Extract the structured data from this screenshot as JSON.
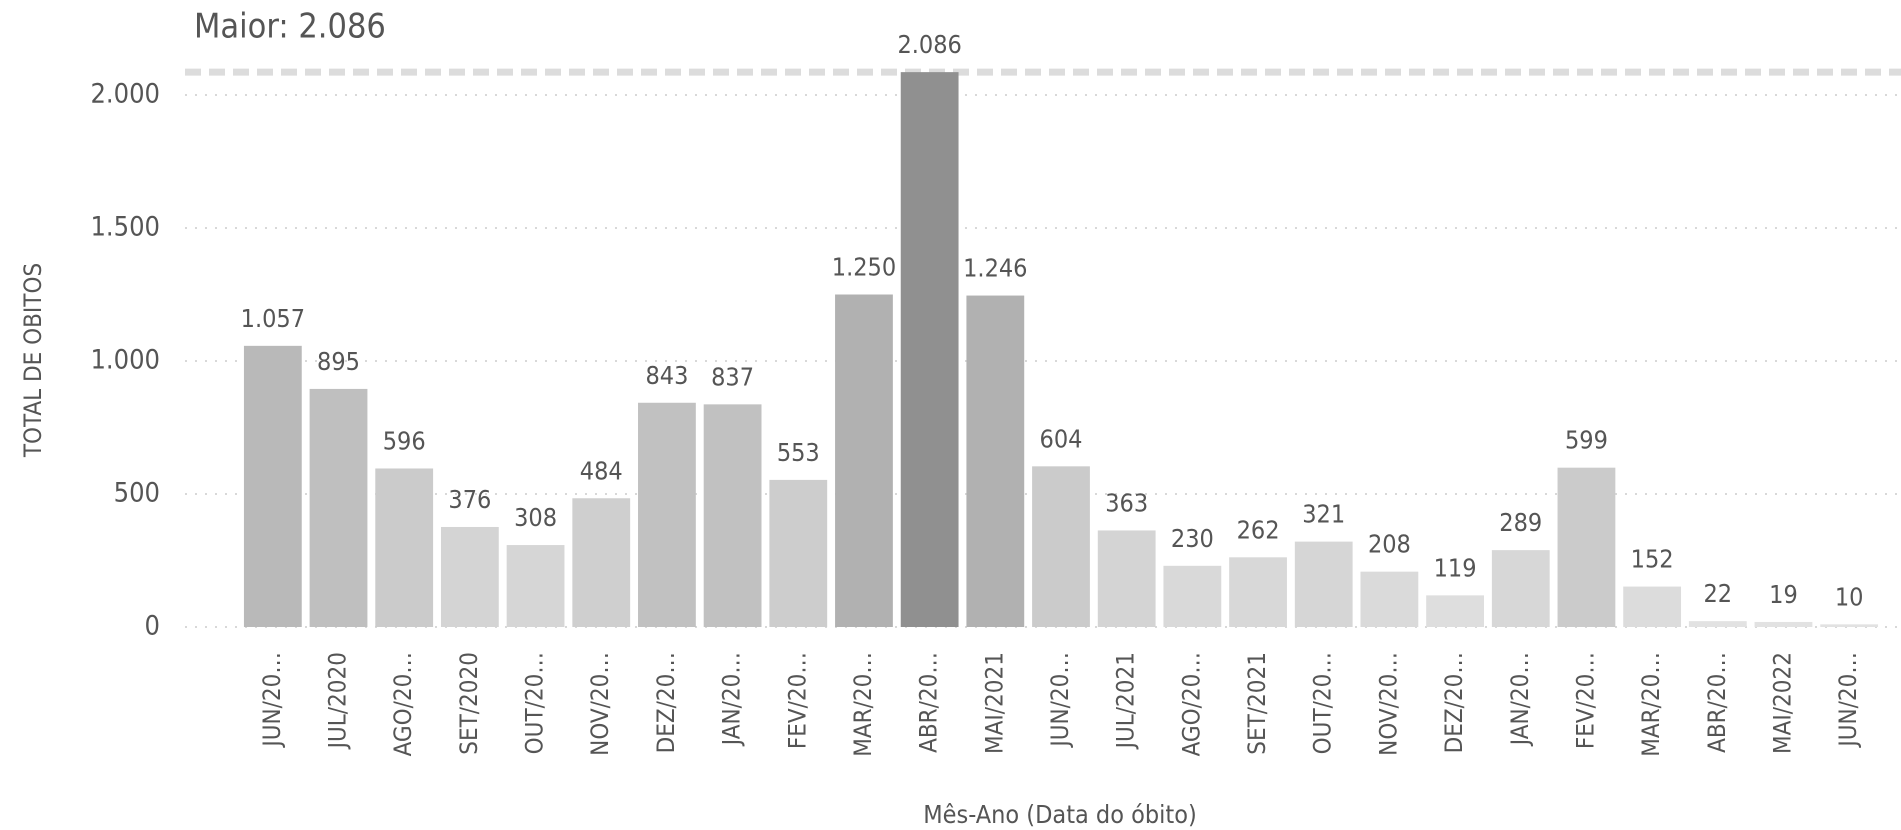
{
  "chart_data": {
    "type": "bar",
    "categories": [
      "JUN/20…",
      "JUL/2020",
      "AGO/20…",
      "SET/2020",
      "OUT/20…",
      "NOV/20…",
      "DEZ/20…",
      "JAN/20…",
      "FEV/20…",
      "MAR/20…",
      "ABR/20…",
      "MAI/2021",
      "JUN/20…",
      "JUL/2021",
      "AGO/20…",
      "SET/2021",
      "OUT/20…",
      "NOV/20…",
      "DEZ/20…",
      "JAN/20…",
      "FEV/20…",
      "MAR/20…",
      "ABR/20…",
      "MAI/2022",
      "JUN/20…"
    ],
    "values": [
      1057,
      895,
      596,
      376,
      308,
      484,
      843,
      837,
      553,
      1250,
      2086,
      1246,
      604,
      363,
      230,
      262,
      321,
      208,
      119,
      289,
      599,
      152,
      22,
      19,
      10
    ],
    "value_labels": [
      "1.057",
      "895",
      "596",
      "376",
      "308",
      "484",
      "843",
      "837",
      "553",
      "1.250",
      "2.086",
      "1.246",
      "604",
      "363",
      "230",
      "262",
      "321",
      "208",
      "119",
      "289",
      "599",
      "152",
      "22",
      "19",
      "10"
    ],
    "color_scale": {
      "min_color": "#e2e2e2",
      "max_color": "#909090"
    },
    "ylim": [
      0,
      2100
    ],
    "yticks": [
      0,
      500,
      {
        "value": 1000,
        "label": "1.000"
      },
      {
        "value": 1500,
        "label": "1.500"
      },
      {
        "value": 2000,
        "label": "2.000"
      }
    ],
    "grid": true,
    "y_label": "TOTAL DE OBITOS",
    "x_label": "Mês-Ano (Data do óbito)",
    "max_line": {
      "label": "Maior: 2.086",
      "value": 2086,
      "color": "#dcdcdc"
    }
  }
}
